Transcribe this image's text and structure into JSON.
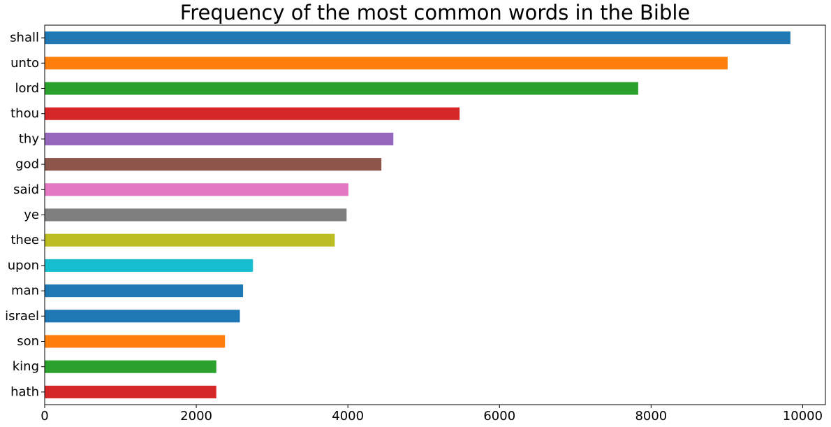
{
  "chart_data": {
    "type": "bar",
    "orientation": "horizontal",
    "title": "Frequency of the most common words in the Bible",
    "xlabel": "",
    "ylabel": "",
    "categories": [
      "shall",
      "unto",
      "lord",
      "thou",
      "thy",
      "god",
      "said",
      "ye",
      "thee",
      "upon",
      "man",
      "israel",
      "son",
      "king",
      "hath"
    ],
    "values": [
      9838,
      9010,
      7830,
      5474,
      4600,
      4442,
      4007,
      3983,
      3827,
      2748,
      2617,
      2575,
      2379,
      2264,
      2264
    ],
    "colors": [
      "#1f77b4",
      "#ff7f0e",
      "#2ca02c",
      "#d62728",
      "#9467bd",
      "#8c564b",
      "#e377c2",
      "#7f7f7f",
      "#bcbd22",
      "#17becf",
      "#1f77b4",
      "#1f77b4",
      "#ff7f0e",
      "#2ca02c",
      "#d62728"
    ],
    "xlim": [
      0,
      10300
    ],
    "xticks": [
      0,
      2000,
      4000,
      6000,
      8000,
      10000
    ],
    "xtick_labels": [
      "0",
      "2000",
      "4000",
      "6000",
      "8000",
      "10000"
    ],
    "grid": false,
    "legend": "none"
  }
}
